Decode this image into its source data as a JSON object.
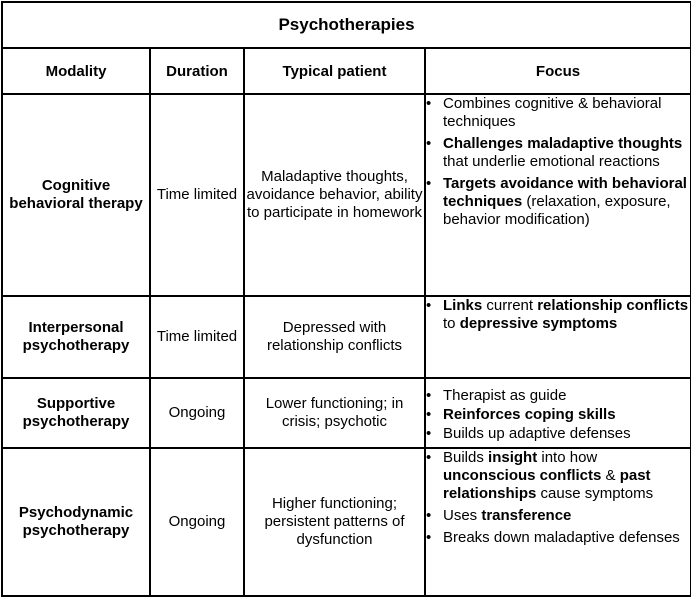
{
  "table": {
    "title": "Psychotherapies",
    "headers": {
      "modality": "Modality",
      "duration": "Duration",
      "patient": "Typical patient",
      "focus": "Focus"
    },
    "rows": [
      {
        "modality": "Cognitive behavioral therapy",
        "duration": "Time limited",
        "patient": "Maladaptive thoughts, avoidance behavior, ability to participate in homework",
        "focus": [
          [
            {
              "t": "Combines cognitive & behavioral techniques",
              "b": false
            }
          ],
          [
            {
              "t": "Challenges maladaptive thoughts",
              "b": true
            },
            {
              "t": " that underlie emotional reactions",
              "b": false
            }
          ],
          [
            {
              "t": "Targets avoidance with behavioral techniques",
              "b": true
            },
            {
              "t": " (relaxation, exposure, behavior modification)",
              "b": false
            }
          ]
        ]
      },
      {
        "modality": "Interpersonal psychotherapy",
        "duration": "Time limited",
        "patient": "Depressed with relationship conflicts",
        "focus": [
          [
            {
              "t": "Links",
              "b": true
            },
            {
              "t": " current ",
              "b": false
            },
            {
              "t": "relationship conflicts",
              "b": true
            },
            {
              "t": " to ",
              "b": false
            },
            {
              "t": "depressive symptoms",
              "b": true
            }
          ]
        ]
      },
      {
        "modality": "Supportive psychotherapy",
        "duration": "Ongoing",
        "patient": "Lower functioning; in crisis; psychotic",
        "focus": [
          [
            {
              "t": "Therapist as guide",
              "b": false
            }
          ],
          [
            {
              "t": "Reinforces coping skills",
              "b": true
            }
          ],
          [
            {
              "t": "Builds up adaptive defenses",
              "b": false
            }
          ]
        ]
      },
      {
        "modality": "Psychodynamic psychotherapy",
        "duration": "Ongoing",
        "patient": "Higher functioning; persistent patterns of dysfunction",
        "focus": [
          [
            {
              "t": "Builds ",
              "b": false
            },
            {
              "t": "insight",
              "b": true
            },
            {
              "t": " into how ",
              "b": false
            },
            {
              "t": "unconscious conflicts",
              "b": true
            },
            {
              "t": " & ",
              "b": false
            },
            {
              "t": "past relationships",
              "b": true
            },
            {
              "t": " cause symptoms",
              "b": false
            }
          ],
          [
            {
              "t": "Uses ",
              "b": false
            },
            {
              "t": "transference",
              "b": true
            }
          ],
          [
            {
              "t": "Breaks down maladaptive defenses",
              "b": false
            }
          ]
        ]
      }
    ]
  }
}
